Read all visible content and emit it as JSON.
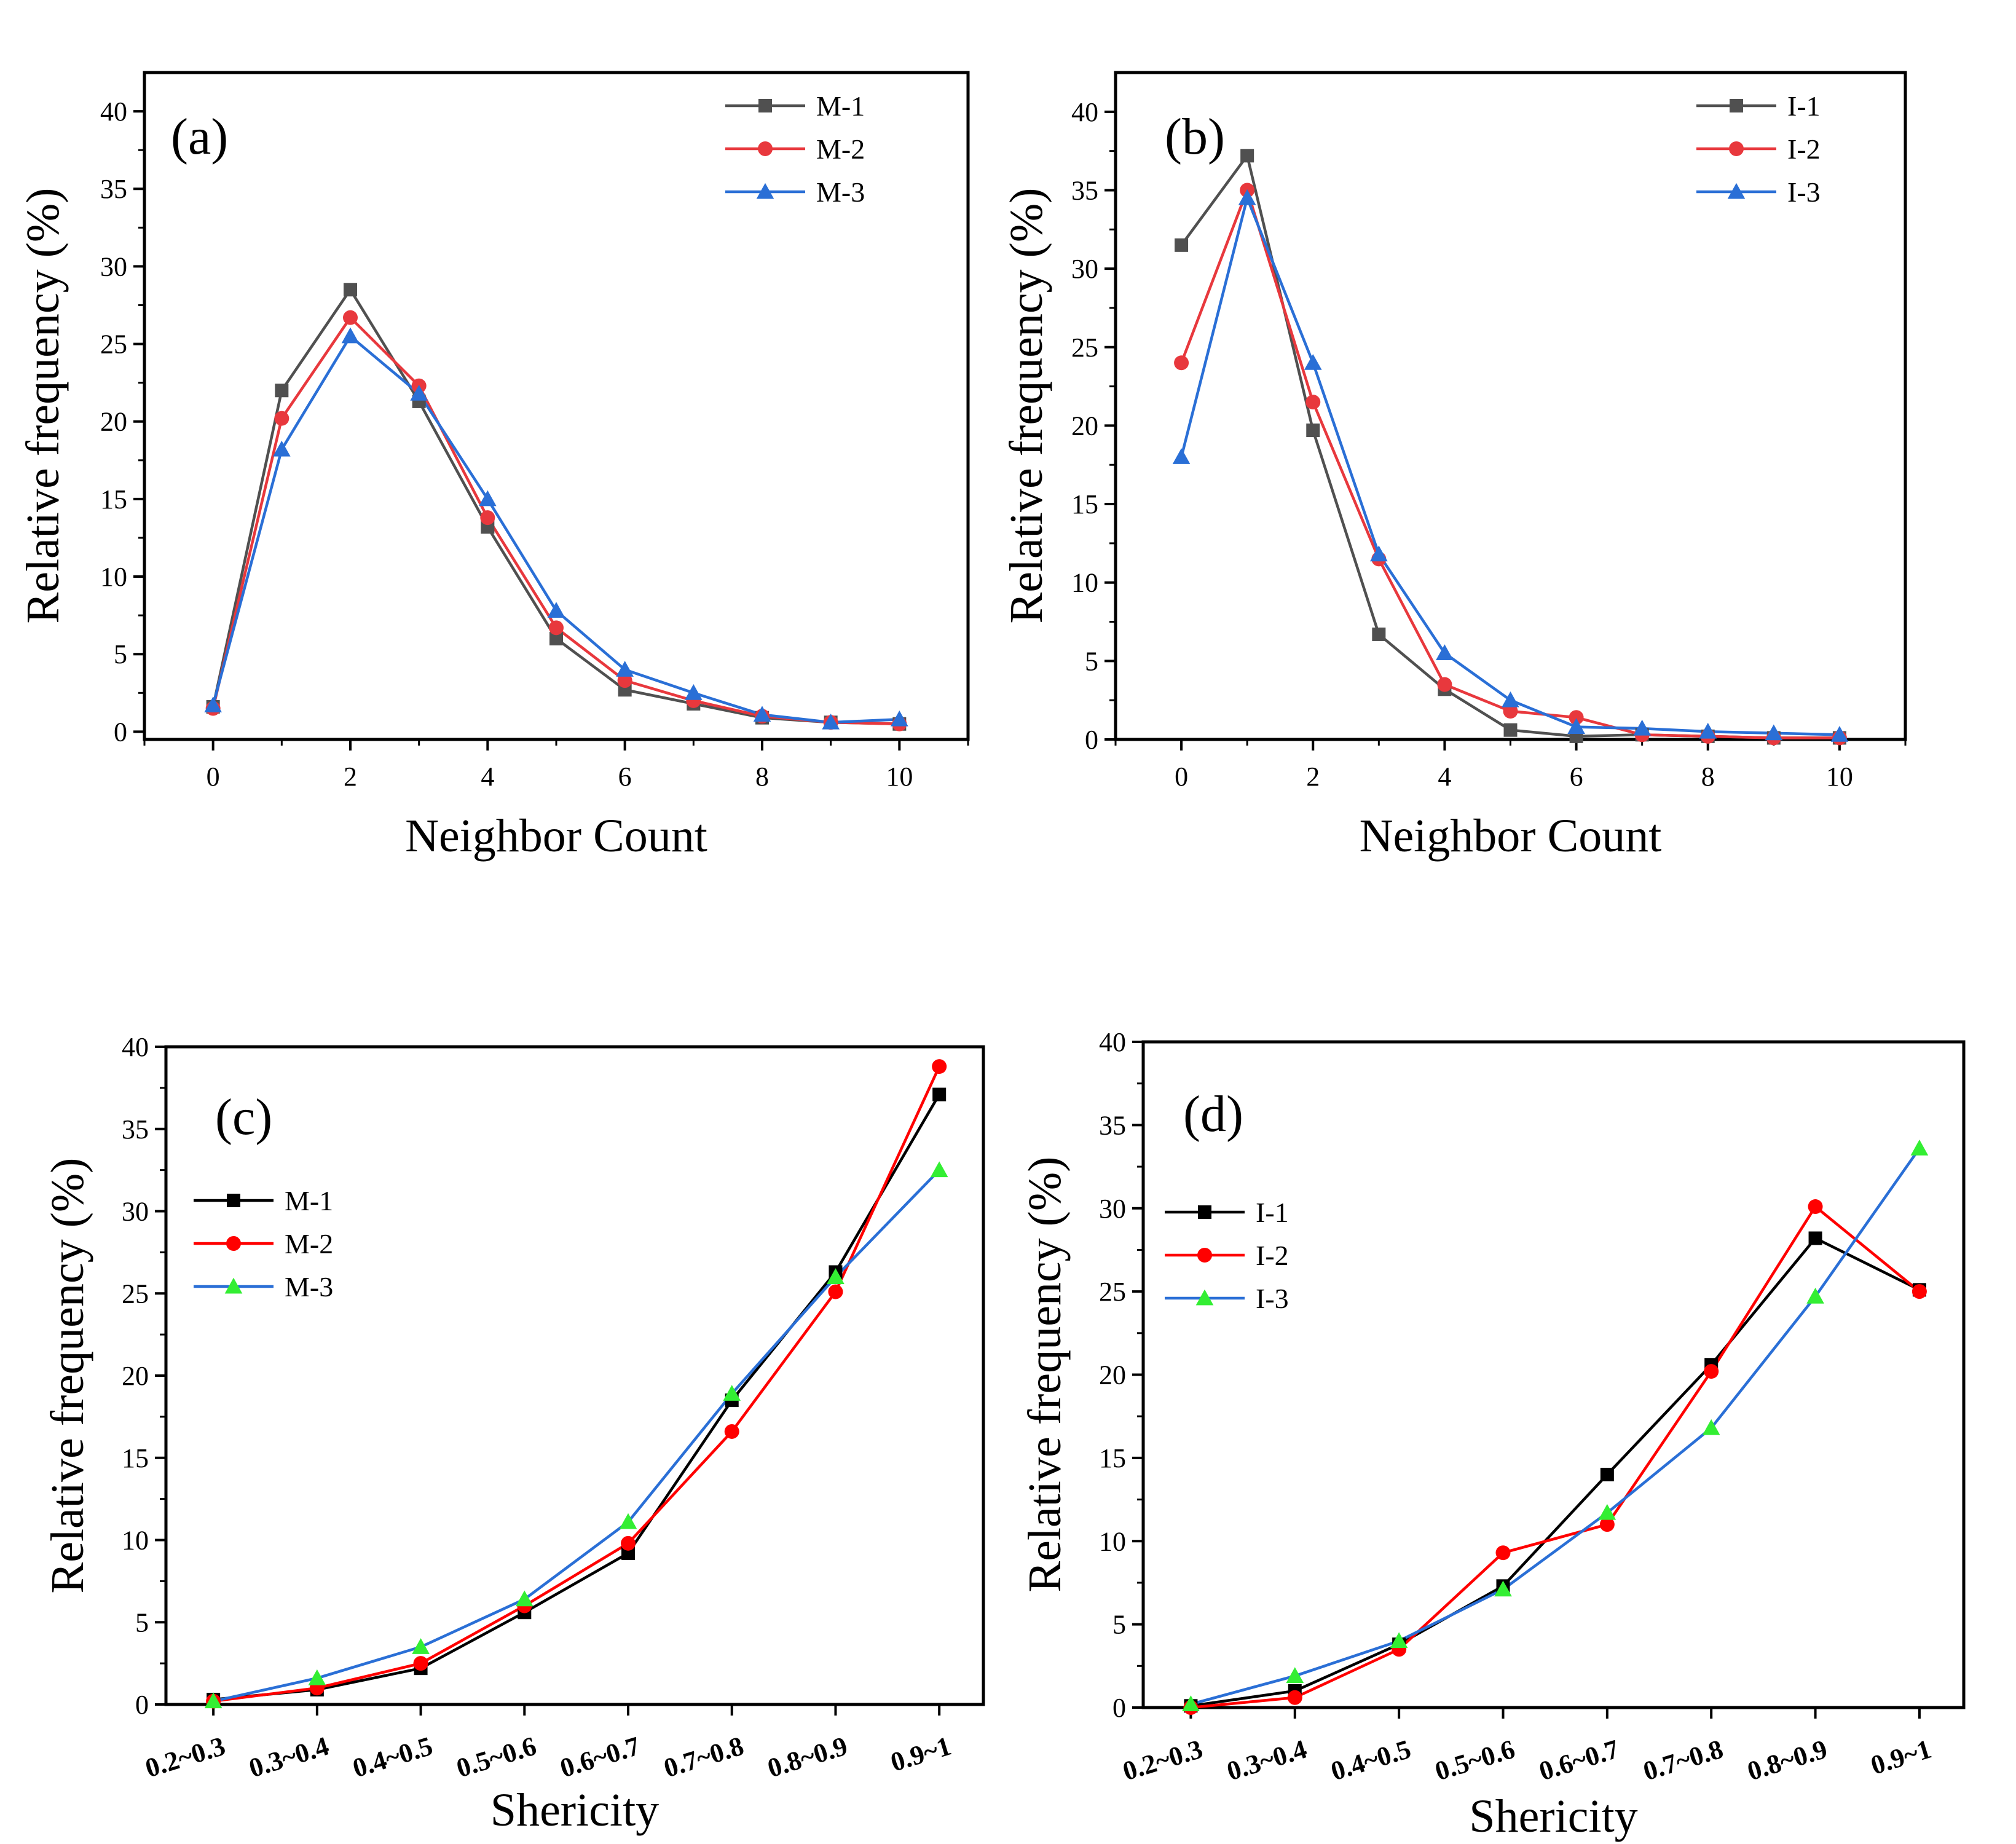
{
  "chart_data": [
    {
      "type": "line",
      "label": "(a)",
      "xlabel": "Neighbor Count",
      "ylabel": "Relative frequency (%)",
      "xlim": [
        -1,
        11
      ],
      "ylim": [
        -0.5,
        42.5
      ],
      "x_ticks": [
        0,
        2,
        4,
        6,
        8,
        10
      ],
      "y_ticks": [
        0,
        5,
        10,
        15,
        20,
        25,
        30,
        35,
        40
      ],
      "legend_position": "top-right",
      "x": [
        0,
        1,
        2,
        3,
        4,
        5,
        6,
        7,
        8,
        9,
        10
      ],
      "series": [
        {
          "name": "M-1",
          "color": "#505050",
          "marker": "square",
          "values": [
            1.6,
            22.0,
            28.5,
            21.3,
            13.2,
            6.0,
            2.7,
            1.8,
            0.9,
            0.6,
            0.5
          ]
        },
        {
          "name": "M-2",
          "color": "#e8383d",
          "marker": "circle",
          "values": [
            1.5,
            20.2,
            26.7,
            22.3,
            13.8,
            6.7,
            3.3,
            2.0,
            1.0,
            0.6,
            0.5
          ]
        },
        {
          "name": "M-3",
          "color": "#2a6fd6",
          "marker": "triangle",
          "values": [
            1.7,
            18.2,
            25.5,
            21.8,
            15.0,
            7.8,
            4.0,
            2.5,
            1.1,
            0.6,
            0.8
          ]
        }
      ]
    },
    {
      "type": "line",
      "label": "(b)",
      "xlabel": "Neighbor Count",
      "ylabel": "Relative frequency (%)",
      "xlim": [
        -1,
        11
      ],
      "ylim": [
        0,
        42.5
      ],
      "x_ticks": [
        0,
        2,
        4,
        6,
        8,
        10
      ],
      "y_ticks": [
        0,
        5,
        10,
        15,
        20,
        25,
        30,
        35,
        40
      ],
      "legend_position": "top-right",
      "x": [
        0,
        1,
        2,
        3,
        4,
        5,
        6,
        7,
        8,
        9,
        10
      ],
      "series": [
        {
          "name": "I-1",
          "color": "#505050",
          "marker": "square",
          "values": [
            31.5,
            37.2,
            19.7,
            6.7,
            3.2,
            0.6,
            0.2,
            0.3,
            0.2,
            0.1,
            0.1
          ]
        },
        {
          "name": "I-2",
          "color": "#e8383d",
          "marker": "circle",
          "values": [
            24.0,
            35.0,
            21.5,
            11.5,
            3.5,
            1.8,
            1.4,
            0.3,
            0.2,
            0.1,
            0.1
          ]
        },
        {
          "name": "I-3",
          "color": "#2a6fd6",
          "marker": "triangle",
          "values": [
            18.0,
            34.5,
            24.0,
            11.8,
            5.5,
            2.5,
            0.8,
            0.7,
            0.5,
            0.4,
            0.3
          ]
        }
      ]
    },
    {
      "type": "line",
      "label": "(c)",
      "xlabel": "Shericity",
      "ylabel": "Relative frequency (%)",
      "categories": [
        "0.2~0.3",
        "0.3~0.4",
        "0.4~0.5",
        "0.5~0.6",
        "0.6~0.7",
        "0.7~0.8",
        "0.8~0.9",
        "0.9~1"
      ],
      "ylim": [
        0,
        40
      ],
      "y_ticks": [
        0,
        5,
        10,
        15,
        20,
        25,
        30,
        35,
        40
      ],
      "legend_position": "middle-left",
      "series": [
        {
          "name": "M-1",
          "color": "#000000",
          "marker": "square",
          "marker_color": "#000000",
          "values": [
            0.3,
            0.9,
            2.2,
            5.6,
            9.2,
            18.5,
            26.3,
            37.1
          ]
        },
        {
          "name": "M-2",
          "color": "#ff0000",
          "marker": "circle",
          "marker_color": "#ff0000",
          "values": [
            0.2,
            1.0,
            2.5,
            6.0,
            9.8,
            16.6,
            25.1,
            38.8
          ]
        },
        {
          "name": "M-3",
          "color": "#2a6fd6",
          "marker": "triangle",
          "marker_color": "#33ee33",
          "values": [
            0.2,
            1.6,
            3.5,
            6.4,
            11.1,
            18.9,
            26.0,
            32.5
          ]
        }
      ]
    },
    {
      "type": "line",
      "label": "(d)",
      "xlabel": "Shericity",
      "ylabel": "Relative frequency (%)",
      "categories": [
        "0.2~0.3",
        "0.3~0.4",
        "0.4~0.5",
        "0.5~0.6",
        "0.6~0.7",
        "0.7~0.8",
        "0.8~0.9",
        "0.9~1"
      ],
      "ylim": [
        0,
        40
      ],
      "y_ticks": [
        0,
        5,
        10,
        15,
        20,
        25,
        30,
        35,
        40
      ],
      "legend_position": "middle-left",
      "series": [
        {
          "name": "I-1",
          "color": "#000000",
          "marker": "square",
          "marker_color": "#000000",
          "values": [
            0.1,
            1.0,
            3.8,
            7.3,
            14.0,
            20.6,
            28.2,
            25.1
          ]
        },
        {
          "name": "I-2",
          "color": "#ff0000",
          "marker": "circle",
          "marker_color": "#ff0000",
          "values": [
            0.0,
            0.6,
            3.5,
            9.3,
            11.0,
            20.2,
            30.1,
            25.0
          ]
        },
        {
          "name": "I-3",
          "color": "#2a6fd6",
          "marker": "triangle",
          "marker_color": "#33ee33",
          "values": [
            0.2,
            1.9,
            4.0,
            7.1,
            11.7,
            16.8,
            24.7,
            33.6
          ]
        }
      ]
    }
  ]
}
